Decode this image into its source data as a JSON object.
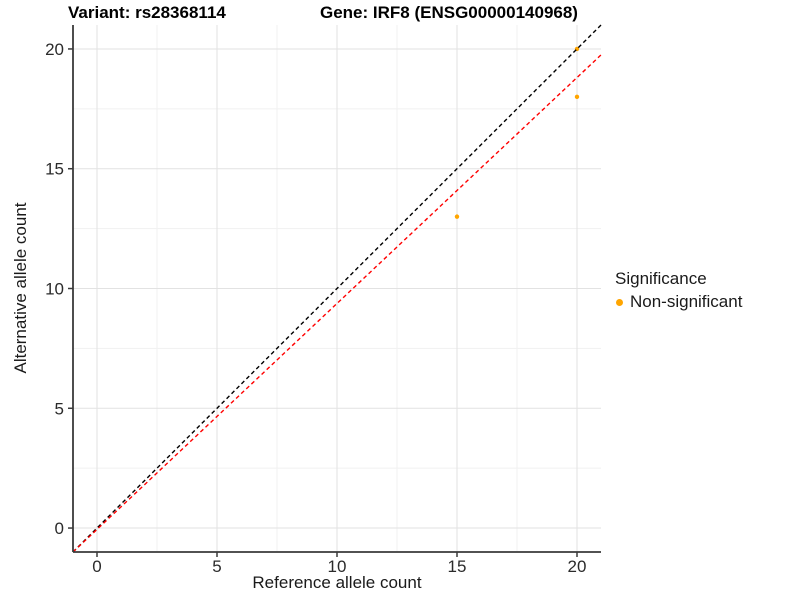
{
  "chart_data": {
    "type": "scatter",
    "title_left": "Variant: rs28368114",
    "title_right": "Gene: IRF8 (ENSG00000140968)",
    "xlabel": "Reference allele count",
    "ylabel": "Alternative allele count",
    "xlim": [
      -1,
      21
    ],
    "ylim": [
      -1,
      21
    ],
    "xticks": [
      0,
      5,
      10,
      15,
      20
    ],
    "yticks": [
      0,
      5,
      10,
      15,
      20
    ],
    "xminor": [
      2.5,
      7.5,
      12.5,
      17.5
    ],
    "yminor": [
      2.5,
      7.5,
      12.5,
      17.5
    ],
    "grid": "major+minor",
    "series": [
      {
        "name": "Non-significant",
        "color": "#FFA500",
        "points": [
          {
            "x": 15,
            "y": 13
          },
          {
            "x": 20,
            "y": 18
          },
          {
            "x": 20,
            "y": 20
          }
        ]
      }
    ],
    "ablines": [
      {
        "name": "identity-line",
        "color": "#000000",
        "style": "dashed",
        "slope": 1,
        "intercept": 0,
        "x1": -1,
        "y1": -1,
        "x2": 21,
        "y2": 21
      },
      {
        "name": "fit-line",
        "color": "#FF0000",
        "style": "dashed",
        "slope": 0.943,
        "intercept": -0.057,
        "x1": -1,
        "y1": -1,
        "x2": 21,
        "y2": 19.75
      }
    ],
    "legend": {
      "title": "Significance",
      "position": "right",
      "items": [
        {
          "label": "Non-significant",
          "color": "#FFA500"
        }
      ]
    }
  },
  "colors": {
    "grid_major": "#E2E2E2",
    "grid_minor": "#F1F1F1",
    "axis_line": "#3a3a3a",
    "tick_text": "#2b2b2b",
    "title_text": "#000000"
  }
}
